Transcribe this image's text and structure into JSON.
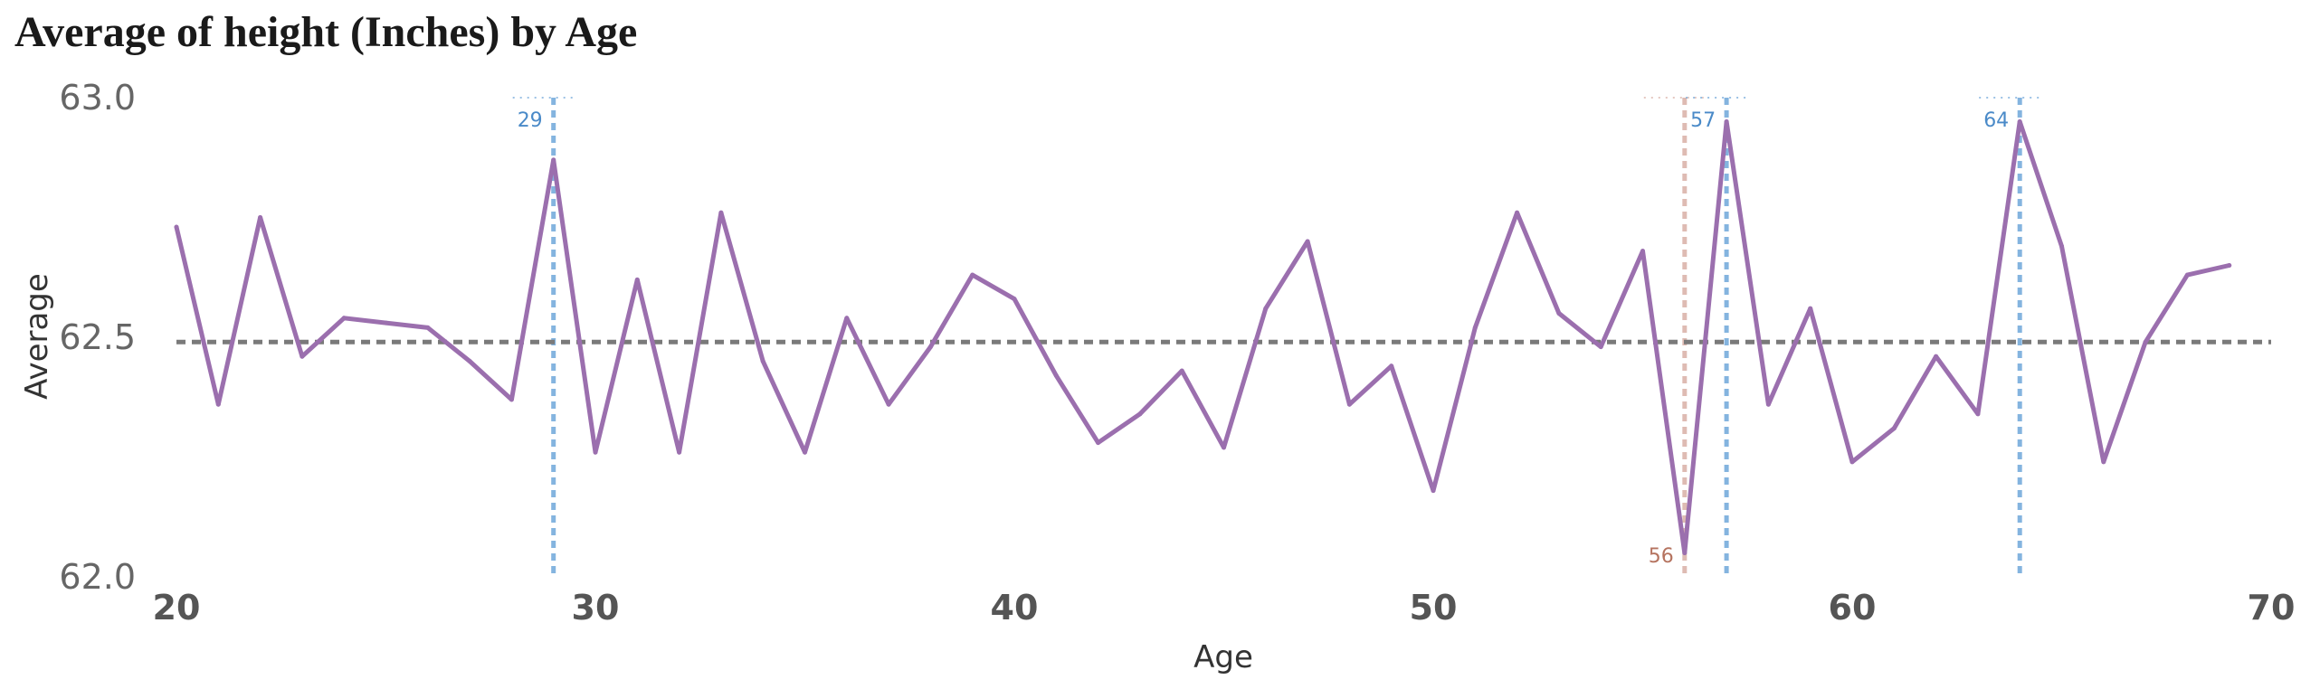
{
  "chart_data": {
    "type": "line",
    "title": "Average of height (Inches) by Age",
    "xlabel": "Age",
    "ylabel": "Average",
    "xlim": [
      20,
      70
    ],
    "ylim": [
      62.0,
      63.0
    ],
    "x_ticks": [
      "20",
      "30",
      "40",
      "50",
      "60",
      "70"
    ],
    "y_ticks": [
      "62.0",
      "62.5",
      "63.0"
    ],
    "grid": false,
    "reference_line": {
      "y": 62.49,
      "style": "dashed"
    },
    "series": [
      {
        "color": "#9b6fae",
        "x": [
          20,
          21,
          22,
          23,
          24,
          25,
          26,
          27,
          28,
          29,
          30,
          31,
          32,
          33,
          34,
          35,
          36,
          37,
          38,
          39,
          40,
          41,
          42,
          43,
          44,
          45,
          46,
          47,
          48,
          49,
          50,
          51,
          52,
          53,
          54,
          55,
          56,
          57,
          58,
          59,
          60,
          61,
          62,
          63,
          64,
          65,
          66,
          67,
          68,
          69
        ],
        "y": [
          62.73,
          62.36,
          62.75,
          62.46,
          62.54,
          62.53,
          62.52,
          62.45,
          62.37,
          62.87,
          62.26,
          62.62,
          62.26,
          62.76,
          62.45,
          62.26,
          62.54,
          62.36,
          62.48,
          62.63,
          62.58,
          62.42,
          62.28,
          62.34,
          62.43,
          62.27,
          62.56,
          62.7,
          62.36,
          62.44,
          62.18,
          62.52,
          62.76,
          62.55,
          62.48,
          62.68,
          62.05,
          62.95,
          62.36,
          62.56,
          62.24,
          62.31,
          62.46,
          62.34,
          62.95,
          62.69,
          62.24,
          62.49,
          62.63,
          62.65
        ]
      }
    ],
    "annotations": [
      {
        "x": 29,
        "label": "29",
        "color": "#5b9bd5",
        "text_color": "#4a8ac8"
      },
      {
        "x": 56,
        "label": "56",
        "color": "#d4a59a",
        "text_color": "#b5735f"
      },
      {
        "x": 57,
        "label": "57",
        "color": "#5b9bd5",
        "text_color": "#4a8ac8"
      },
      {
        "x": 64,
        "label": "64",
        "color": "#5b9bd5",
        "text_color": "#4a8ac8"
      }
    ]
  }
}
